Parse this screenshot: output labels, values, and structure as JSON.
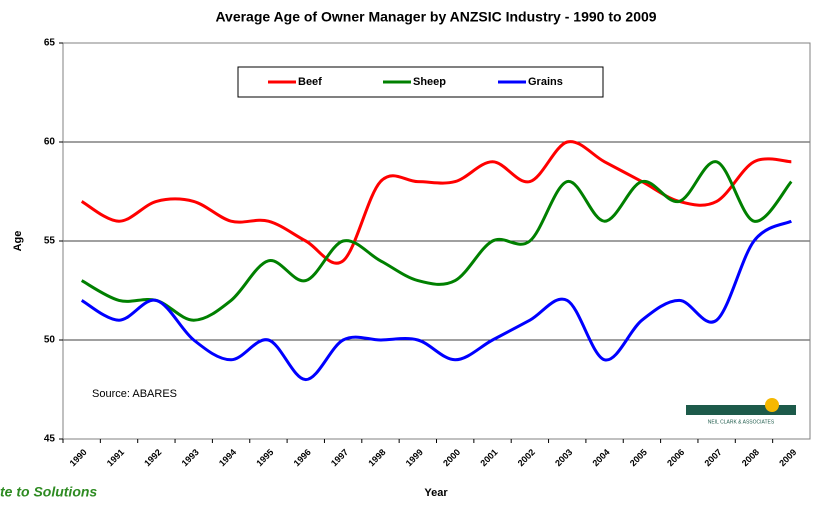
{
  "chart_data": {
    "type": "line",
    "title": "Average Age of Owner Manager by ANZSIC Industry - 1990 to 2009",
    "x_label": "Year",
    "y_label": "Age",
    "categories": [
      "1990",
      "1991",
      "1992",
      "1993",
      "1994",
      "1995",
      "1996",
      "1997",
      "1998",
      "1999",
      "2000",
      "2001",
      "2002",
      "2003",
      "2004",
      "2005",
      "2006",
      "2007",
      "2008",
      "2009"
    ],
    "series": [
      {
        "name": "Beef",
        "color": "#ff0000",
        "values": [
          57,
          56,
          57,
          57,
          56,
          56,
          55,
          54,
          58,
          58,
          58,
          59,
          58,
          60,
          59,
          58,
          57,
          57,
          59,
          59
        ]
      },
      {
        "name": "Sheep",
        "color": "#008000",
        "values": [
          53,
          52,
          52,
          51,
          52,
          54,
          53,
          55,
          54,
          53,
          53,
          55,
          55,
          58,
          56,
          58,
          57,
          59,
          56,
          58
        ]
      },
      {
        "name": "Grains",
        "color": "#0000ff",
        "values": [
          52,
          51,
          52,
          50,
          49,
          50,
          48,
          50,
          50,
          50,
          49,
          50,
          51,
          52,
          49,
          51,
          52,
          51,
          55,
          56
        ]
      }
    ],
    "ylim": [
      45,
      65
    ],
    "yticks": [
      45,
      50,
      55,
      60,
      65
    ],
    "grid": true,
    "legend": "top",
    "annotations": {
      "source": "Source:  ABARES",
      "logo": "NEIL CLARK & ASSOCIATES",
      "footer": "te to Solutions"
    }
  }
}
